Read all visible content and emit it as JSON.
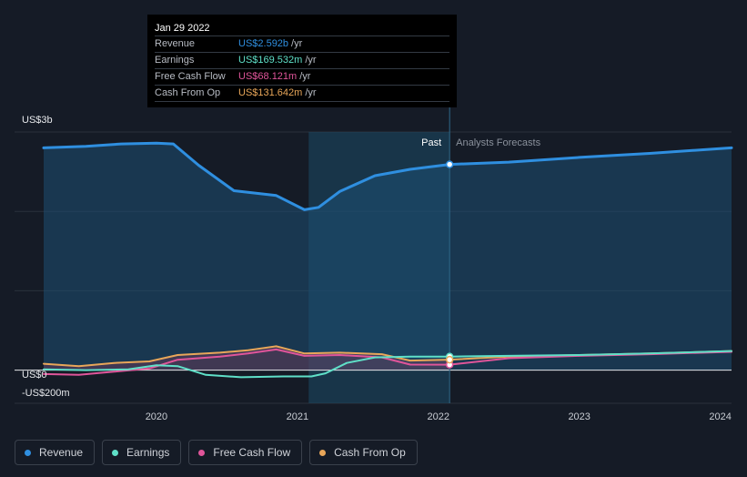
{
  "tooltip": {
    "date": "Jan 29 2022",
    "rows": [
      {
        "label": "Revenue",
        "value": "US$2.592b",
        "unit": "/yr",
        "color": "#2f8fe0"
      },
      {
        "label": "Earnings",
        "value": "US$169.532m",
        "unit": "/yr",
        "color": "#5fe0c8"
      },
      {
        "label": "Free Cash Flow",
        "value": "US$68.121m",
        "unit": "/yr",
        "color": "#e0559a"
      },
      {
        "label": "Cash From Op",
        "value": "US$131.642m",
        "unit": "/yr",
        "color": "#e8a659"
      }
    ]
  },
  "legend": [
    {
      "label": "Revenue",
      "color": "#2f8fe0"
    },
    {
      "label": "Earnings",
      "color": "#5fe0c8"
    },
    {
      "label": "Free Cash Flow",
      "color": "#e0559a"
    },
    {
      "label": "Cash From Op",
      "color": "#e8a659"
    }
  ],
  "chart_data": {
    "type": "line",
    "y_labels": {
      "top": "US$3b",
      "zero": "US$0",
      "bottom": "-US$200m"
    },
    "ylim": [
      -200,
      3000
    ],
    "xlim": [
      2019.2,
      2024.08
    ],
    "x_ticks": [
      2020,
      2021,
      2022,
      2023,
      2024
    ],
    "x_tick_labels": [
      "2020",
      "2021",
      "2022",
      "2023",
      "2024"
    ],
    "past_label": "Past",
    "forecast_label": "Analysts Forecasts",
    "past_end": 2022.08,
    "highlight_start": 2021.08,
    "series": [
      {
        "name": "Revenue",
        "color": "#2f8fe0",
        "area": true,
        "x": [
          2019.2,
          2019.5,
          2019.75,
          2020.0,
          2020.12,
          2020.3,
          2020.55,
          2020.85,
          2021.05,
          2021.15,
          2021.3,
          2021.55,
          2021.8,
          2022.08,
          2022.5,
          2023.0,
          2023.5,
          2024.08
        ],
        "y": [
          2800,
          2820,
          2850,
          2860,
          2850,
          2580,
          2260,
          2200,
          2020,
          2050,
          2250,
          2450,
          2530,
          2592,
          2620,
          2680,
          2730,
          2800
        ]
      },
      {
        "name": "Earnings",
        "color": "#5fe0c8",
        "area": false,
        "x": [
          2019.2,
          2019.5,
          2019.8,
          2020.0,
          2020.15,
          2020.35,
          2020.6,
          2020.9,
          2021.1,
          2021.2,
          2021.35,
          2021.55,
          2021.8,
          2022.08,
          2022.5,
          2023.0,
          2023.5,
          2024.08
        ],
        "y": [
          10,
          0,
          10,
          60,
          50,
          -60,
          -90,
          -80,
          -80,
          -40,
          90,
          160,
          170,
          170,
          180,
          190,
          210,
          240
        ]
      },
      {
        "name": "Free Cash Flow",
        "color": "#e0559a",
        "area": false,
        "x": [
          2019.2,
          2019.45,
          2019.7,
          2019.95,
          2020.15,
          2020.45,
          2020.65,
          2020.85,
          2021.05,
          2021.3,
          2021.6,
          2021.8,
          2022.08,
          2022.5,
          2023.0,
          2023.5,
          2024.08
        ],
        "y": [
          -50,
          -60,
          -20,
          20,
          130,
          170,
          210,
          260,
          180,
          190,
          160,
          70,
          68,
          150,
          180,
          200,
          230
        ]
      },
      {
        "name": "Cash From Op",
        "color": "#e8a659",
        "area": false,
        "x": [
          2019.2,
          2019.45,
          2019.7,
          2019.95,
          2020.15,
          2020.45,
          2020.65,
          2020.85,
          2021.05,
          2021.3,
          2021.6,
          2021.8,
          2022.08,
          2022.5,
          2023.0,
          2023.5,
          2024.08
        ],
        "y": [
          80,
          50,
          90,
          110,
          190,
          220,
          250,
          300,
          210,
          220,
          200,
          120,
          131.642,
          170,
          190,
          210,
          240
        ]
      }
    ]
  }
}
